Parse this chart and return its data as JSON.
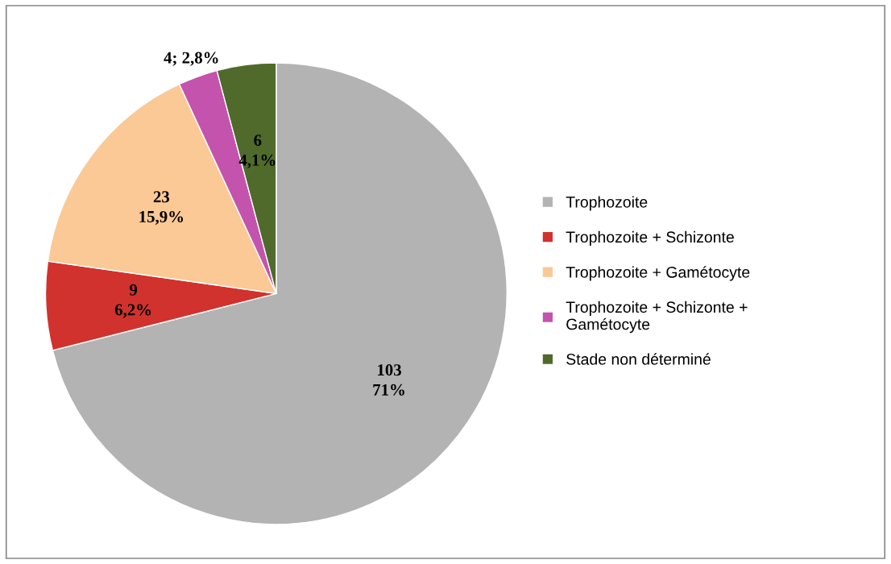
{
  "chart_data": {
    "type": "pie",
    "categories": [
      "Trophozoite",
      "Trophozoite + Schizonte",
      "Trophozoite + Gamétocyte",
      "Trophozoite + Schizonte +\nGamétocyte",
      "Stade non déterminé"
    ],
    "values": [
      103,
      9,
      23,
      4,
      6
    ],
    "colors": [
      "#b3b3b3",
      "#d1322d",
      "#fac996",
      "#c453ad",
      "#4f6a2b"
    ],
    "value_labels": [
      "103\n71%",
      "9\n6,2%",
      "23\n15,9%",
      "4; 2,8%",
      "6\n4,1%"
    ],
    "legend": "right"
  }
}
